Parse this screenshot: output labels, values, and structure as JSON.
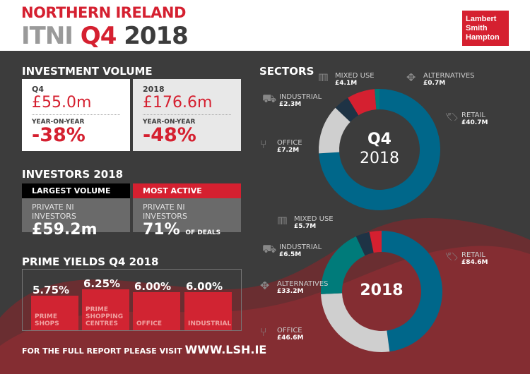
{
  "header": {
    "line1": "NORTHERN IRELAND",
    "itni": "ITNI",
    "q4": "Q4",
    "year": "2018",
    "logo": "Lambert Smith Hampton"
  },
  "investment": {
    "title": "INVESTMENT VOLUME",
    "boxes": [
      {
        "period": "Q4",
        "value": "£55.0m",
        "yoy_label": "YEAR-ON-YEAR",
        "yoy": "-38%"
      },
      {
        "period": "2018",
        "value": "£176.6m",
        "yoy_label": "YEAR-ON-YEAR",
        "yoy": "-48%"
      }
    ]
  },
  "investors": {
    "title": "INVESTORS 2018",
    "largest": {
      "tag": "LARGEST VOLUME",
      "who": "PRIVATE NI INVESTORS",
      "value": "£59.2m"
    },
    "active": {
      "tag": "MOST ACTIVE",
      "who": "PRIVATE NI INVESTORS",
      "value": "71%",
      "suffix": "OF DEALS"
    }
  },
  "yields": {
    "title": "PRIME YIELDS Q4 2018",
    "items": [
      {
        "value": "5.75%",
        "label1": "PRIME",
        "label2": "SHOPS",
        "label3": ""
      },
      {
        "value": "6.25%",
        "label1": "PRIME",
        "label2": "SHOPPING",
        "label3": "CENTRES"
      },
      {
        "value": "6.00%",
        "label1": "",
        "label2": "",
        "label3": "OFFICE"
      },
      {
        "value": "6.00%",
        "label1": "",
        "label2": "",
        "label3": "INDUSTRIAL"
      }
    ]
  },
  "footer": {
    "text": "FOR THE FULL REPORT PLEASE VISIT",
    "url": "WWW.LSH.IE"
  },
  "colors": {
    "red": "#d52030",
    "retail": "#00678a",
    "office": "#cfcfcf",
    "industrial": "#1e3345",
    "mixed": "#d52030",
    "alternatives": "#007b7a"
  },
  "chart_data": [
    {
      "type": "pie",
      "title": "SECTORS",
      "center_label": "Q4",
      "center_sub": "2018",
      "unit": "£M",
      "categories": [
        "RETAIL",
        "OFFICE",
        "INDUSTRIAL",
        "MIXED USE",
        "ALTERNATIVES"
      ],
      "labels": [
        "£40.7M",
        "£7.2M",
        "£2.3M",
        "£4.1M",
        "£0.7M"
      ],
      "values": [
        40.7,
        7.2,
        2.3,
        4.1,
        0.7
      ]
    },
    {
      "type": "pie",
      "center_label": "2018",
      "unit": "£M",
      "categories": [
        "RETAIL",
        "OFFICE",
        "ALTERNATIVES",
        "INDUSTRIAL",
        "MIXED USE"
      ],
      "labels": [
        "£84.6M",
        "£46.6M",
        "£33.2M",
        "£6.5M",
        "£5.7M"
      ],
      "values": [
        84.6,
        46.6,
        33.2,
        6.5,
        5.7
      ]
    }
  ]
}
